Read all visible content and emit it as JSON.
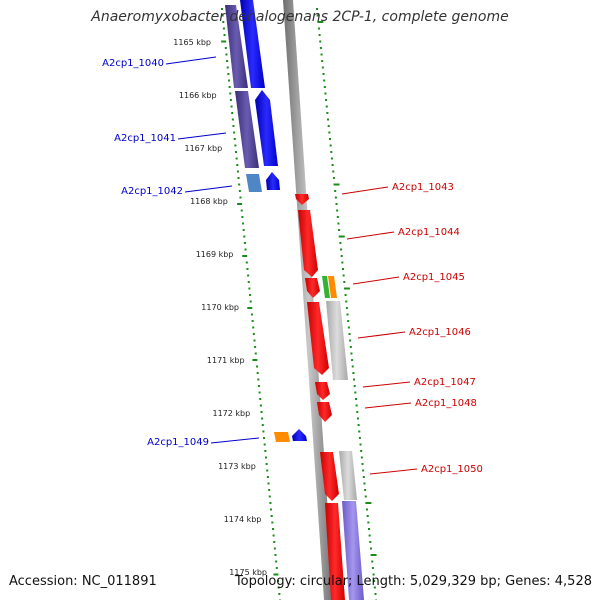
{
  "title": "Anaeromyxobacter dehalogenans 2CP-1, complete genome",
  "footer": {
    "accession": "Accession: NC_011891",
    "topology": "Topology: circular; Length: 5,029,329 bp; Genes: 4,528"
  },
  "scale_labels": [
    "1165 kbp",
    "1166 kbp",
    "1167 kbp",
    "1168 kbp",
    "1169 kbp",
    "1170 kbp",
    "1171 kbp",
    "1172 kbp",
    "1173 kbp",
    "1174 kbp",
    "1175 kbp"
  ],
  "genes": [
    {
      "label": "A2cp1_1040",
      "strand": "-",
      "color": "#0000cc"
    },
    {
      "label": "A2cp1_1041",
      "strand": "-",
      "color": "#0000cc"
    },
    {
      "label": "A2cp1_1042",
      "strand": "-",
      "color": "#0000cc"
    },
    {
      "label": "A2cp1_1043",
      "strand": "+",
      "color": "#cc0000"
    },
    {
      "label": "A2cp1_1044",
      "strand": "+",
      "color": "#cc0000"
    },
    {
      "label": "A2cp1_1045",
      "strand": "+",
      "color": "#cc0000"
    },
    {
      "label": "A2cp1_1046",
      "strand": "+",
      "color": "#cc0000"
    },
    {
      "label": "A2cp1_1047",
      "strand": "+",
      "color": "#cc0000"
    },
    {
      "label": "A2cp1_1048",
      "strand": "+",
      "color": "#cc0000"
    },
    {
      "label": "A2cp1_1049",
      "strand": "-",
      "color": "#0000cc"
    },
    {
      "label": "A2cp1_1050",
      "strand": "+",
      "color": "#cc0000"
    }
  ],
  "colors": {
    "backbone": "#8a8a8a",
    "forward_cds": "#ff0000",
    "reverse_cds": "#0000ff",
    "reverse_cog": "#4b3f8c",
    "gray_cog": "#bdbdbd",
    "green_tick": "#1a8c1a",
    "orange_cog": "#ff8c00",
    "green_cog": "#33b233",
    "light_blue_cog": "#4f86c6",
    "purple_cog": "#8070d0"
  }
}
